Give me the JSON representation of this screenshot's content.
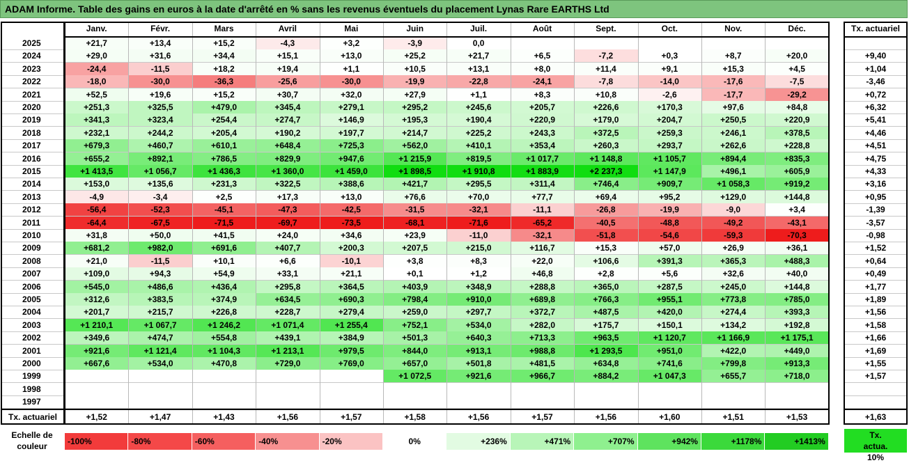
{
  "title": "ADAM Informe. Table des gains en euros à la date d'arrêté en % sans les revenus éventuels du placement Lynas Rare EARTHS Ltd",
  "chart_data": {
    "type": "heatmap",
    "months": [
      "Janv.",
      "Févr.",
      "Mars",
      "Avril",
      "Mai",
      "Juin",
      "Juil.",
      "Août",
      "Sept.",
      "Oct.",
      "Nov.",
      "Déc."
    ],
    "annual_header": "Tx. actuariel",
    "rows": [
      {
        "year": "2025",
        "values": [
          "+21,7",
          "+13,4",
          "+15,2",
          "-4,3",
          "+3,2",
          "-3,9",
          "0,0",
          "",
          "",
          "",
          "",
          ""
        ],
        "rate": ""
      },
      {
        "year": "2024",
        "values": [
          "+29,0",
          "+31,6",
          "+34,4",
          "+15,1",
          "+13,0",
          "+25,2",
          "+21,7",
          "+6,5",
          "-7,2",
          "+0,3",
          "+8,7",
          "+20,0"
        ],
        "rate": "+9,40"
      },
      {
        "year": "2023",
        "values": [
          "-24,4",
          "-11,5",
          "+18,2",
          "+19,4",
          "+1,1",
          "+10,5",
          "+13,1",
          "+8,0",
          "+11,4",
          "+9,1",
          "+15,3",
          "+4,5"
        ],
        "rate": "+1,04"
      },
      {
        "year": "2022",
        "values": [
          "-18,0",
          "-30,0",
          "-36,3",
          "-25,6",
          "-30,0",
          "-19,9",
          "-22,8",
          "-24,1",
          "-7,8",
          "-14,0",
          "-17,6",
          "-7,5"
        ],
        "rate": "-3,46"
      },
      {
        "year": "2021",
        "values": [
          "+52,5",
          "+19,6",
          "+15,2",
          "+30,7",
          "+32,0",
          "+27,9",
          "+1,1",
          "+8,3",
          "+10,8",
          "-2,6",
          "-17,7",
          "-29,2"
        ],
        "rate": "+0,72"
      },
      {
        "year": "2020",
        "values": [
          "+251,3",
          "+325,5",
          "+479,0",
          "+345,4",
          "+279,1",
          "+295,2",
          "+245,6",
          "+205,7",
          "+226,6",
          "+170,3",
          "+97,6",
          "+84,8"
        ],
        "rate": "+6,32"
      },
      {
        "year": "2019",
        "values": [
          "+341,3",
          "+323,4",
          "+254,4",
          "+274,7",
          "+146,9",
          "+195,3",
          "+190,4",
          "+220,9",
          "+179,0",
          "+204,7",
          "+250,5",
          "+220,9"
        ],
        "rate": "+5,41"
      },
      {
        "year": "2018",
        "values": [
          "+232,1",
          "+244,2",
          "+205,4",
          "+190,2",
          "+197,7",
          "+214,7",
          "+225,2",
          "+243,3",
          "+372,5",
          "+259,3",
          "+246,1",
          "+378,5"
        ],
        "rate": "+4,46"
      },
      {
        "year": "2017",
        "values": [
          "+679,3",
          "+460,7",
          "+610,1",
          "+648,4",
          "+725,3",
          "+562,0",
          "+410,1",
          "+353,4",
          "+260,3",
          "+293,7",
          "+262,6",
          "+228,8"
        ],
        "rate": "+4,51"
      },
      {
        "year": "2016",
        "values": [
          "+655,2",
          "+892,1",
          "+786,5",
          "+829,9",
          "+947,6",
          "+1 215,9",
          "+819,5",
          "+1 017,7",
          "+1 148,8",
          "+1 105,7",
          "+894,4",
          "+835,3"
        ],
        "rate": "+4,75"
      },
      {
        "year": "2015",
        "values": [
          "+1 413,5",
          "+1 056,7",
          "+1 436,3",
          "+1 360,0",
          "+1 459,0",
          "+1 898,5",
          "+1 910,8",
          "+1 883,9",
          "+2 237,3",
          "+1 147,9",
          "+496,1",
          "+605,9"
        ],
        "rate": "+4,33"
      },
      {
        "year": "2014",
        "values": [
          "+153,0",
          "+135,6",
          "+231,3",
          "+322,5",
          "+388,6",
          "+421,7",
          "+295,5",
          "+311,4",
          "+746,4",
          "+909,7",
          "+1 058,3",
          "+919,2"
        ],
        "rate": "+3,16"
      },
      {
        "year": "2013",
        "values": [
          "-4,9",
          "-3,4",
          "+2,5",
          "+17,3",
          "+13,0",
          "+76,6",
          "+70,0",
          "+77,7",
          "+69,4",
          "+95,2",
          "+129,0",
          "+144,8"
        ],
        "rate": "+0,95"
      },
      {
        "year": "2012",
        "values": [
          "-56,4",
          "-52,3",
          "-45,1",
          "-47,3",
          "-42,5",
          "-31,5",
          "-32,1",
          "-11,1",
          "-26,8",
          "-19,9",
          "-9,0",
          "+3,4"
        ],
        "rate": "-1,39"
      },
      {
        "year": "2011",
        "values": [
          "-64,4",
          "-67,5",
          "-71,5",
          "-69,7",
          "-73,5",
          "-68,1",
          "-71,6",
          "-65,2",
          "-40,5",
          "-48,8",
          "-49,2",
          "-43,1"
        ],
        "rate": "-3,57"
      },
      {
        "year": "2010",
        "values": [
          "+31,8",
          "+50,0",
          "+41,5",
          "+24,0",
          "+34,6",
          "+23,9",
          "-11,0",
          "-32,1",
          "-51,8",
          "-54,6",
          "-59,3",
          "-70,3"
        ],
        "rate": "-0,98"
      },
      {
        "year": "2009",
        "values": [
          "+681,2",
          "+982,0",
          "+691,6",
          "+407,7",
          "+200,3",
          "+207,5",
          "+215,0",
          "+116,7",
          "+15,3",
          "+57,0",
          "+26,9",
          "+36,1"
        ],
        "rate": "+1,52"
      },
      {
        "year": "2008",
        "values": [
          "+21,0",
          "-11,5",
          "+10,1",
          "+6,6",
          "-10,1",
          "+3,8",
          "+8,3",
          "+22,0",
          "+106,6",
          "+391,3",
          "+365,3",
          "+488,3"
        ],
        "rate": "+0,64"
      },
      {
        "year": "2007",
        "values": [
          "+109,0",
          "+94,3",
          "+54,9",
          "+33,1",
          "+21,1",
          "+0,1",
          "+1,2",
          "+46,8",
          "+2,8",
          "+5,6",
          "+32,6",
          "+40,0"
        ],
        "rate": "+0,49"
      },
      {
        "year": "2006",
        "values": [
          "+545,0",
          "+486,6",
          "+436,4",
          "+295,8",
          "+364,5",
          "+403,9",
          "+348,9",
          "+288,8",
          "+365,0",
          "+287,5",
          "+245,0",
          "+144,8"
        ],
        "rate": "+1,77"
      },
      {
        "year": "2005",
        "values": [
          "+312,6",
          "+383,5",
          "+374,9",
          "+634,5",
          "+690,3",
          "+798,4",
          "+910,0",
          "+689,8",
          "+766,3",
          "+955,1",
          "+773,8",
          "+785,0"
        ],
        "rate": "+1,89"
      },
      {
        "year": "2004",
        "values": [
          "+201,7",
          "+215,7",
          "+226,8",
          "+228,7",
          "+279,4",
          "+259,0",
          "+297,7",
          "+372,7",
          "+487,5",
          "+420,0",
          "+274,4",
          "+393,3"
        ],
        "rate": "+1,56"
      },
      {
        "year": "2003",
        "values": [
          "+1 210,1",
          "+1 067,7",
          "+1 246,2",
          "+1 071,4",
          "+1 255,4",
          "+752,1",
          "+534,0",
          "+282,0",
          "+175,7",
          "+150,1",
          "+134,2",
          "+192,8"
        ],
        "rate": "+1,58"
      },
      {
        "year": "2002",
        "values": [
          "+349,6",
          "+474,7",
          "+554,8",
          "+439,1",
          "+384,9",
          "+501,3",
          "+640,3",
          "+713,3",
          "+963,5",
          "+1 120,7",
          "+1 166,9",
          "+1 175,1"
        ],
        "rate": "+1,66"
      },
      {
        "year": "2001",
        "values": [
          "+921,6",
          "+1 121,4",
          "+1 104,3",
          "+1 213,1",
          "+979,5",
          "+844,0",
          "+913,1",
          "+988,8",
          "+1 293,5",
          "+951,0",
          "+422,0",
          "+449,0"
        ],
        "rate": "+1,69"
      },
      {
        "year": "2000",
        "values": [
          "+667,6",
          "+534,0",
          "+470,8",
          "+729,0",
          "+769,0",
          "+657,0",
          "+501,8",
          "+481,5",
          "+634,8",
          "+741,6",
          "+799,8",
          "+913,3"
        ],
        "rate": "+1,55"
      },
      {
        "year": "1999",
        "values": [
          "",
          "",
          "",
          "",
          "",
          "+1 072,5",
          "+921,6",
          "+966,7",
          "+884,2",
          "+1 047,3",
          "+655,7",
          "+718,0"
        ],
        "rate": "+1,57"
      },
      {
        "year": "1998",
        "values": [
          "",
          "",
          "",
          "",
          "",
          "",
          "",
          "",
          "",
          "",
          "",
          ""
        ],
        "rate": ""
      },
      {
        "year": "1997",
        "values": [
          "",
          "",
          "",
          "",
          "",
          "",
          "",
          "",
          "",
          "",
          "",
          ""
        ],
        "rate": ""
      }
    ],
    "footer": {
      "label": "Tx. actuariel",
      "values": [
        "+1,52",
        "+1,47",
        "+1,43",
        "+1,56",
        "+1,57",
        "+1,58",
        "+1,56",
        "+1,57",
        "+1,56",
        "+1,60",
        "+1,51",
        "+1,53"
      ],
      "overall": "+1,63"
    },
    "scale": {
      "label": "Echelle de couleur",
      "items": [
        {
          "text": "-100%",
          "color": "#f23b3b"
        },
        {
          "text": "-80%",
          "color": "#f44848"
        },
        {
          "text": "-60%",
          "color": "#f55f5f"
        },
        {
          "text": "-40%",
          "color": "#f79090"
        },
        {
          "text": "-20%",
          "color": "#fbc3c3"
        },
        {
          "text": "0%",
          "color": "#ffffff"
        },
        {
          "text": "+236%",
          "color": "#e2fbe2"
        },
        {
          "text": "+471%",
          "color": "#b8f5b8"
        },
        {
          "text": "+707%",
          "color": "#8ff08f"
        },
        {
          "text": "+942%",
          "color": "#5ee35e"
        },
        {
          "text": "+1178%",
          "color": "#3bd93b"
        },
        {
          "text": "+1413%",
          "color": "#22cc22"
        }
      ],
      "rate_box": {
        "text": "Tx. actua. 10%",
        "color": "#22dd22"
      }
    }
  }
}
